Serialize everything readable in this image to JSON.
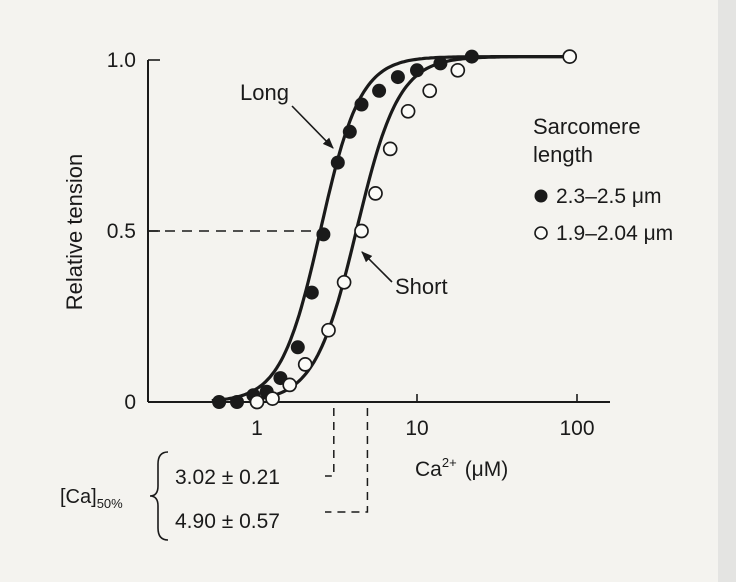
{
  "chart_data": {
    "type": "scatter",
    "x_scale": "log",
    "xlim": [
      0.4,
      120
    ],
    "ylim": [
      0,
      1.0
    ],
    "xlabel_main": "Ca",
    "xlabel_sup": "2+",
    "xlabel_unit": "(μM)",
    "ylabel": "Relative tension",
    "x_ticks": [
      {
        "value": 1,
        "label": "1"
      },
      {
        "value": 10,
        "label": "10"
      },
      {
        "value": 100,
        "label": "100"
      }
    ],
    "y_ticks": [
      {
        "value": 0,
        "label": "0"
      },
      {
        "value": 0.5,
        "label": "0.5"
      },
      {
        "value": 1.0,
        "label": "1.0"
      }
    ],
    "legend": {
      "title_line1": "Sarcomere",
      "title_line2": "length",
      "placement": "right"
    },
    "series": [
      {
        "name": "2.3–2.5 μm",
        "curve_label": "Long",
        "marker": "filled",
        "ec50": 2.5,
        "hill": 3.5,
        "x": [
          0.58,
          0.75,
          0.95,
          1.15,
          1.4,
          1.8,
          2.2,
          2.6,
          3.2,
          3.8,
          4.5,
          5.8,
          7.6,
          10,
          14,
          22
        ],
        "y": [
          0.0,
          0.0,
          0.02,
          0.03,
          0.07,
          0.16,
          0.32,
          0.49,
          0.7,
          0.79,
          0.87,
          0.91,
          0.95,
          0.97,
          0.99,
          1.01
        ]
      },
      {
        "name": "1.9–2.04 μm",
        "curve_label": "Short",
        "marker": "open",
        "ec50": 4.2,
        "hill": 3.3,
        "x": [
          1.0,
          1.25,
          1.6,
          2.0,
          2.8,
          3.5,
          4.5,
          5.5,
          6.8,
          8.8,
          12,
          18,
          90
        ],
        "y": [
          0.0,
          0.01,
          0.05,
          0.11,
          0.21,
          0.35,
          0.5,
          0.61,
          0.74,
          0.85,
          0.91,
          0.97,
          1.01
        ]
      }
    ],
    "ec50_annotation": {
      "label": "[Ca]",
      "label_sub": "50%",
      "values": [
        "3.02 ± 0.21",
        "4.90 ± 0.57"
      ],
      "x_positions": [
        3.02,
        4.9
      ]
    }
  }
}
